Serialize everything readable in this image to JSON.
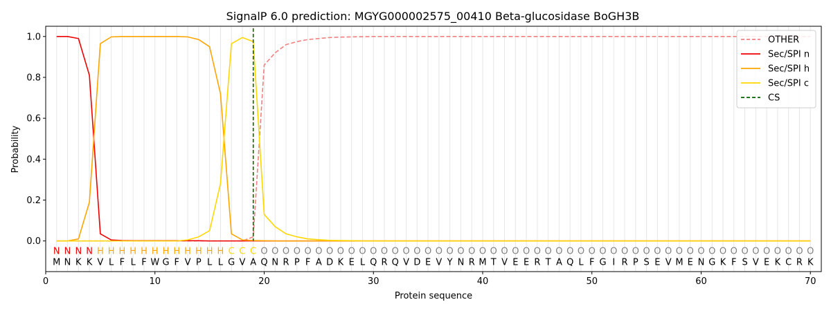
{
  "chart_data": {
    "type": "line",
    "title": "SignalP 6.0 prediction: MGYG000002575_00410 Beta-glucosidase BoGH3B",
    "xlabel": "Protein sequence",
    "ylabel": "Probability",
    "xlim": [
      0,
      71
    ],
    "ylim": [
      -0.15,
      1.05
    ],
    "xticks": [
      0,
      10,
      20,
      30,
      40,
      50,
      60,
      70
    ],
    "yticks": [
      0.0,
      0.2,
      0.4,
      0.6,
      0.8,
      1.0
    ],
    "xtick_labels": [
      "0",
      "10",
      "20",
      "30",
      "40",
      "50",
      "60",
      "70"
    ],
    "ytick_labels": [
      "0.0",
      "0.2",
      "0.4",
      "0.6",
      "0.8",
      "1.0"
    ],
    "vertical_gridlines_at_positions": true,
    "legend_position": "top-right",
    "sequence": [
      "M",
      "N",
      "K",
      "K",
      "V",
      "L",
      "F",
      "L",
      "F",
      "W",
      "G",
      "F",
      "V",
      "P",
      "L",
      "L",
      "G",
      "V",
      "A",
      "Q",
      "N",
      "R",
      "P",
      "F",
      "A",
      "D",
      "K",
      "E",
      "L",
      "Q",
      "R",
      "Q",
      "V",
      "D",
      "E",
      "V",
      "Y",
      "N",
      "R",
      "M",
      "T",
      "V",
      "E",
      "E",
      "R",
      "T",
      "A",
      "Q",
      "L",
      "F",
      "G",
      "I",
      "R",
      "P",
      "S",
      "E",
      "V",
      "M",
      "E",
      "N",
      "G",
      "K",
      "F",
      "S",
      "V",
      "E",
      "K",
      "C",
      "R",
      "K"
    ],
    "region_labels": [
      "N",
      "N",
      "N",
      "N",
      "H",
      "H",
      "H",
      "H",
      "H",
      "H",
      "H",
      "H",
      "H",
      "H",
      "H",
      "H",
      "C",
      "C",
      "C",
      "O",
      "O",
      "O",
      "O",
      "O",
      "O",
      "O",
      "O",
      "O",
      "O",
      "O",
      "O",
      "O",
      "O",
      "O",
      "O",
      "O",
      "O",
      "O",
      "O",
      "O",
      "O",
      "O",
      "O",
      "O",
      "O",
      "O",
      "O",
      "O",
      "O",
      "O",
      "O",
      "O",
      "O",
      "O",
      "O",
      "O",
      "O",
      "O",
      "O",
      "O",
      "O",
      "O",
      "O",
      "O",
      "O",
      "O",
      "O",
      "O",
      "O",
      "O"
    ],
    "region_colors": {
      "N": "#ee0000",
      "H": "#ffa500",
      "C": "#ffd700",
      "O": "#808080"
    },
    "series": [
      {
        "name": "OTHER",
        "color": "#f08080",
        "dash": true,
        "values": [
          0,
          0,
          0,
          0,
          0,
          0,
          0,
          0,
          0,
          0,
          0,
          0,
          0,
          0,
          0,
          0,
          0,
          0,
          0.02,
          0.86,
          0.92,
          0.96,
          0.975,
          0.985,
          0.99,
          0.995,
          0.997,
          0.998,
          0.999,
          1,
          1,
          1,
          1,
          1,
          1,
          1,
          1,
          1,
          1,
          1,
          1,
          1,
          1,
          1,
          1,
          1,
          1,
          1,
          1,
          1,
          1,
          1,
          1,
          1,
          1,
          1,
          1,
          1,
          1,
          1,
          1,
          1,
          1,
          1,
          1,
          1,
          1,
          1,
          1,
          1
        ]
      },
      {
        "name": "Sec/SPI n",
        "color": "#ee0000",
        "dash": false,
        "values": [
          1,
          1,
          0.99,
          0.81,
          0.035,
          0.005,
          0.002,
          0.001,
          0.001,
          0.001,
          0.001,
          0.001,
          0.001,
          0.001,
          0,
          0,
          0,
          0,
          0,
          0,
          0,
          0,
          0,
          0,
          0,
          0,
          0,
          0,
          0,
          0,
          0,
          0,
          0,
          0,
          0,
          0,
          0,
          0,
          0,
          0,
          0,
          0,
          0,
          0,
          0,
          0,
          0,
          0,
          0,
          0,
          0,
          0,
          0,
          0,
          0,
          0,
          0,
          0,
          0,
          0,
          0,
          0,
          0,
          0,
          0,
          0,
          0,
          0,
          0,
          0
        ]
      },
      {
        "name": "Sec/SPI h",
        "color": "#ffa500",
        "dash": false,
        "values": [
          0,
          0,
          0.01,
          0.19,
          0.965,
          0.998,
          1,
          1,
          1,
          1,
          1,
          1,
          0.998,
          0.985,
          0.95,
          0.72,
          0.035,
          0.005,
          0.002,
          0.001,
          0,
          0,
          0,
          0,
          0,
          0,
          0,
          0,
          0,
          0,
          0,
          0,
          0,
          0,
          0,
          0,
          0,
          0,
          0,
          0,
          0,
          0,
          0,
          0,
          0,
          0,
          0,
          0,
          0,
          0,
          0,
          0,
          0,
          0,
          0,
          0,
          0,
          0,
          0,
          0,
          0,
          0,
          0,
          0,
          0,
          0,
          0,
          0,
          0,
          0
        ]
      },
      {
        "name": "Sec/SPI c",
        "color": "#ffd700",
        "dash": false,
        "values": [
          0,
          0,
          0,
          0,
          0,
          0,
          0,
          0,
          0,
          0,
          0,
          0,
          0.005,
          0.02,
          0.05,
          0.28,
          0.965,
          0.995,
          0.975,
          0.13,
          0.07,
          0.035,
          0.02,
          0.01,
          0.006,
          0.003,
          0.002,
          0.001,
          0,
          0,
          0,
          0,
          0,
          0,
          0,
          0,
          0,
          0,
          0,
          0,
          0,
          0,
          0,
          0,
          0,
          0,
          0,
          0,
          0,
          0,
          0,
          0,
          0,
          0,
          0,
          0,
          0,
          0,
          0,
          0,
          0,
          0,
          0,
          0,
          0,
          0,
          0,
          0,
          0,
          0
        ]
      }
    ],
    "cleavage_site": {
      "name": "CS",
      "x": 19,
      "color": "#006400"
    }
  }
}
